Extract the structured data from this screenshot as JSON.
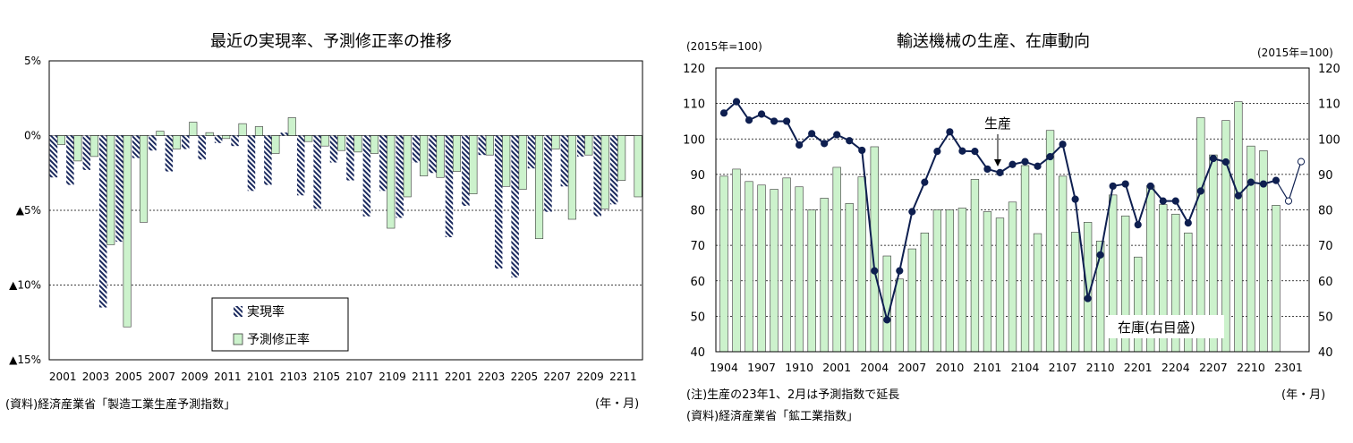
{
  "colors": {
    "bar_green": "#CCF2CC",
    "bar_edge": "#3A3A3A",
    "hatch": "#1B2A5E",
    "line": "#0E1F50",
    "text": "#000000"
  },
  "left": {
    "source": "(資料)経済産業省「製造工業生産予測指数」",
    "unit_label": "(年・月)"
  },
  "right": {
    "unit_left": "(2015年=100)",
    "unit_right": "(2015年=100)",
    "note": "(注)生産の23年1、2月は予測指数で延長",
    "source": "(資料)経済産業省「鉱工業指数」",
    "unit_label": "(年・月)"
  },
  "chart_data": [
    {
      "type": "bar",
      "title": "最近の実現率、予測修正率の推移",
      "ylim": [
        -15,
        5
      ],
      "y_ticks": [
        5,
        0,
        -5,
        -10,
        -15
      ],
      "y_tick_labels": [
        "5%",
        "0%",
        "▲5%",
        "▲10%",
        "▲15%"
      ],
      "x_tick_labels": [
        "2001",
        "2003",
        "2005",
        "2007",
        "2009",
        "2011",
        "2101",
        "2103",
        "2105",
        "2107",
        "2109",
        "2111",
        "2201",
        "2203",
        "2205",
        "2207",
        "2209",
        "2211"
      ],
      "legend": [
        "実現率",
        "予測修正率"
      ],
      "series": [
        {
          "name": "実現率",
          "values": [
            -2.8,
            -3.3,
            -2.3,
            -11.5,
            -7.1,
            -1.5,
            -1.0,
            -2.4,
            -0.9,
            -1.6,
            -0.5,
            -0.7,
            -3.7,
            -3.3,
            0.2,
            -4.0,
            -4.9,
            -1.8,
            -3.0,
            -5.4,
            -3.7,
            -5.5,
            -1.8,
            -2.5,
            -6.8,
            -4.7,
            -1.3,
            -8.9,
            -9.5,
            -2.2,
            -5.1,
            -3.4,
            -1.4,
            -5.4,
            -4.6,
            0.0
          ]
        },
        {
          "name": "予測修正率",
          "values": [
            -0.6,
            -1.7,
            -1.4,
            -7.3,
            -12.8,
            -5.8,
            0.3,
            -0.9,
            0.9,
            0.2,
            -0.2,
            0.8,
            0.6,
            -1.2,
            1.2,
            -0.4,
            -0.7,
            -1.0,
            -1.1,
            -1.2,
            -6.2,
            -4.1,
            -2.7,
            -2.8,
            -2.4,
            -3.9,
            -1.3,
            -3.4,
            -3.6,
            -6.9,
            -0.9,
            -5.6,
            -1.3,
            -4.9,
            -3.0,
            -4.1
          ]
        }
      ]
    },
    {
      "type": "bar",
      "title": "輸送機械の生産、在庫動向",
      "ylim": [
        40,
        120
      ],
      "y_ticks": [
        40,
        50,
        60,
        70,
        80,
        90,
        100,
        110,
        120
      ],
      "y_tick_labels": [
        "40",
        "50",
        "60",
        "70",
        "80",
        "90",
        "100",
        "110",
        "120"
      ],
      "x_tick_labels": [
        "1904",
        "1907",
        "1910",
        "2001",
        "2004",
        "2007",
        "2010",
        "2101",
        "2104",
        "2107",
        "2110",
        "2201",
        "2204",
        "2207",
        "2210",
        "2301"
      ],
      "annotations": [
        "生産",
        "在庫(右目盛)"
      ],
      "series": [
        {
          "name": "在庫(右目盛)",
          "type": "bar",
          "values": [
            89.5,
            91.5,
            88.0,
            87.0,
            85.8,
            89.0,
            86.5,
            80.0,
            83.3,
            92.0,
            81.8,
            89.3,
            97.8,
            67.0,
            60.5,
            69.0,
            73.5,
            80.0,
            80.0,
            80.5,
            88.6,
            79.5,
            77.7,
            82.2,
            92.5,
            73.3,
            102.4,
            89.5,
            73.7,
            76.5,
            71.2,
            84.2,
            78.3,
            66.7,
            86.8,
            81.5,
            78.8,
            73.5,
            106.0,
            95.5,
            105.2,
            110.5,
            98.0,
            96.7,
            81.3
          ]
        },
        {
          "name": "生産",
          "type": "line",
          "values": [
            107.3,
            110.5,
            105.3,
            107.0,
            105.0,
            105.0,
            98.3,
            101.5,
            98.7,
            101.2,
            99.5,
            96.8,
            62.8,
            49.0,
            62.8,
            79.5,
            87.8,
            96.5,
            102.0,
            96.6,
            96.5,
            91.5,
            90.5,
            92.8,
            93.6,
            92.3,
            95.0,
            98.5,
            83.0,
            55.0,
            67.3,
            86.7,
            87.3,
            75.8,
            86.7,
            82.5,
            82.5,
            76.3,
            85.3,
            94.5,
            93.5,
            84.0,
            87.8,
            87.3,
            88.3,
            82.5,
            93.6
          ]
        }
      ]
    }
  ]
}
